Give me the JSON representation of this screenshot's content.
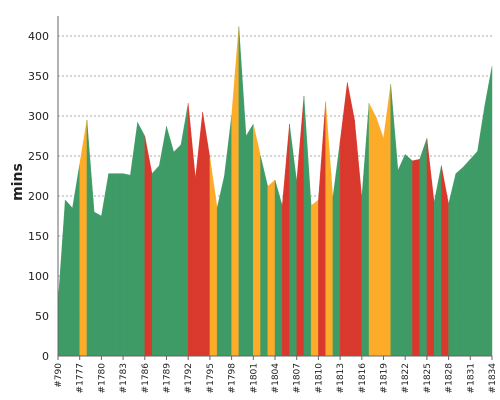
{
  "chart_data": {
    "type": "area",
    "ylabel": "mins",
    "ylim": [
      0,
      420
    ],
    "yticks": [
      0,
      50,
      100,
      150,
      200,
      250,
      300,
      350,
      400
    ],
    "grid": true,
    "colors": {
      "green": "#3e9b66",
      "orange": "#fdac2a",
      "red": "#d9382c"
    },
    "x": [
      "#790",
      "#1775",
      "#1776",
      "#1777",
      "#1778",
      "#1779",
      "#1780",
      "#1781",
      "#1782",
      "#1783",
      "#1784",
      "#1785",
      "#1786",
      "#1787",
      "#1788",
      "#1789",
      "#1790",
      "#1791",
      "#1792",
      "#1793",
      "#1794",
      "#1795",
      "#1796",
      "#1797",
      "#1798",
      "#1799",
      "#1800",
      "#1801",
      "#1802",
      "#1803",
      "#1804",
      "#1805",
      "#1806",
      "#1807",
      "#1808",
      "#1809",
      "#1810",
      "#1811",
      "#1812",
      "#1813",
      "#1814",
      "#1815",
      "#1816",
      "#1817",
      "#1818",
      "#1819",
      "#1820",
      "#1821",
      "#1822",
      "#1823",
      "#1824",
      "#1825",
      "#1826",
      "#1827",
      "#1828",
      "#1829",
      "#1830",
      "#1831",
      "#1832",
      "#1833",
      "#1834"
    ],
    "xtick_labels": [
      "#790",
      "#1777",
      "#1780",
      "#1783",
      "#1786",
      "#1789",
      "#1792",
      "#1795",
      "#1798",
      "#1801",
      "#1804",
      "#1807",
      "#1810",
      "#1813",
      "#1816",
      "#1819",
      "#1822",
      "#1825",
      "#1828",
      "#1831",
      "#1834"
    ],
    "values": [
      65,
      195,
      185,
      240,
      295,
      180,
      175,
      228,
      228,
      228,
      226,
      292,
      275,
      228,
      238,
      287,
      255,
      264,
      316,
      222,
      305,
      248,
      185,
      225,
      300,
      412,
      275,
      290,
      250,
      212,
      220,
      188,
      290,
      218,
      325,
      188,
      195,
      318,
      198,
      268,
      342,
      295,
      198,
      316,
      298,
      272,
      340,
      232,
      252,
      244,
      246,
      272,
      192,
      238,
      190,
      228,
      236,
      246,
      256,
      313,
      362
    ],
    "statuses": [
      "green",
      "green",
      "green",
      "orange",
      "green",
      "green",
      "green",
      "green",
      "green",
      "green",
      "green",
      "green",
      "red",
      "green",
      "green",
      "green",
      "green",
      "green",
      "red",
      "red",
      "red",
      "orange",
      "green",
      "green",
      "orange",
      "green",
      "green",
      "orange",
      "green",
      "orange",
      "green",
      "red",
      "green",
      "red",
      "green",
      "orange",
      "red",
      "orange",
      "green",
      "red",
      "red",
      "red",
      "green",
      "orange",
      "orange",
      "orange",
      "green",
      "green",
      "green",
      "red",
      "green",
      "red",
      "green",
      "red",
      "green",
      "green",
      "green",
      "green",
      "green",
      "green",
      "green"
    ]
  }
}
